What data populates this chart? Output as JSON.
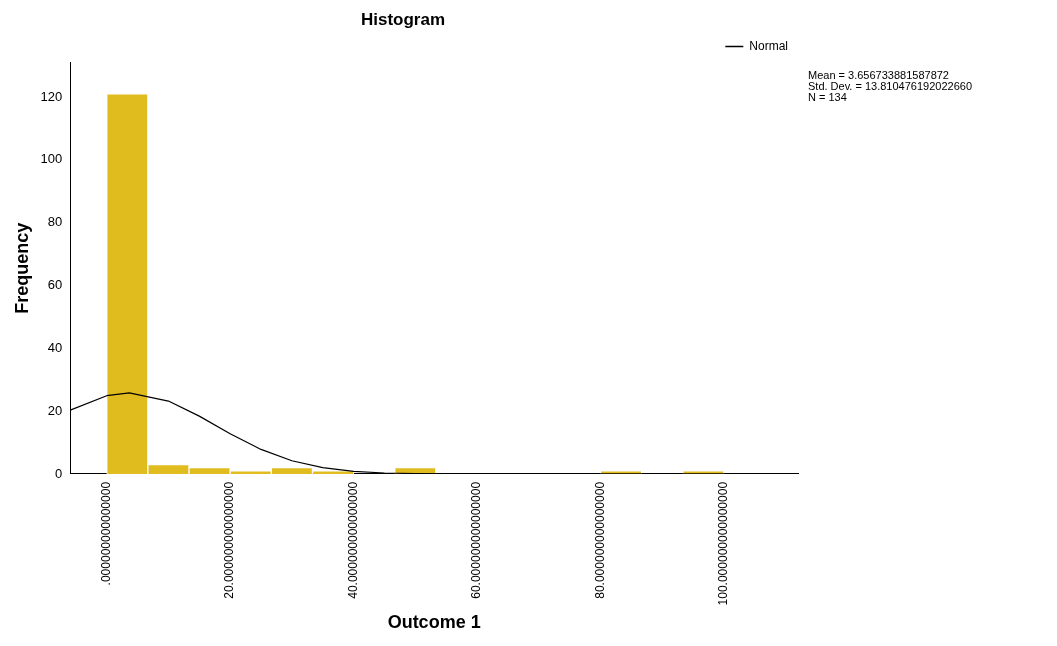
{
  "chart_data": {
    "type": "histogram",
    "title": "Histogram",
    "xlabel": "Outcome 1",
    "ylabel": "Frequency",
    "bins": [
      0,
      6.667,
      13.333,
      20,
      26.667,
      33.333,
      40,
      46.667,
      53.333,
      60,
      66.667,
      73.333,
      80,
      86.667,
      93.333,
      100
    ],
    "values": [
      121,
      3,
      2,
      1,
      2,
      1,
      0,
      2,
      0,
      0,
      0,
      0,
      1,
      0,
      1
    ],
    "color": "#e1bc1e",
    "series": [
      {
        "type": "line",
        "name": "Normal",
        "color": "#000000",
        "x": [
          -5.9,
          0,
          3.66,
          10,
          15,
          20,
          25,
          30,
          35,
          40,
          45,
          50,
          60,
          80,
          112
        ],
        "values": [
          20.3,
          24.9,
          25.8,
          23.2,
          18.4,
          12.8,
          7.8,
          4.2,
          2.0,
          0.8,
          0.3,
          0.1,
          0,
          0,
          0
        ]
      }
    ],
    "xlim": [
      -5.9,
      112
    ],
    "xticks": [
      {
        "value": 0,
        "label": ".000000000000000"
      },
      {
        "value": 20,
        "label": "20.000000000000000"
      },
      {
        "value": 40,
        "label": "40.000000000000000"
      },
      {
        "value": 60,
        "label": "60.000000000000000"
      },
      {
        "value": 80,
        "label": "80.000000000000000"
      },
      {
        "value": 100,
        "label": "100.000000000000000"
      }
    ],
    "ylim": [
      0,
      131
    ],
    "yticks": [
      0,
      20,
      40,
      60,
      80,
      100,
      120
    ],
    "grid": false,
    "legend": "top right",
    "annotations": [
      "Mean = 3.656733881587872",
      "Std. Dev. = 13.810476192022660",
      "N = 134"
    ]
  }
}
